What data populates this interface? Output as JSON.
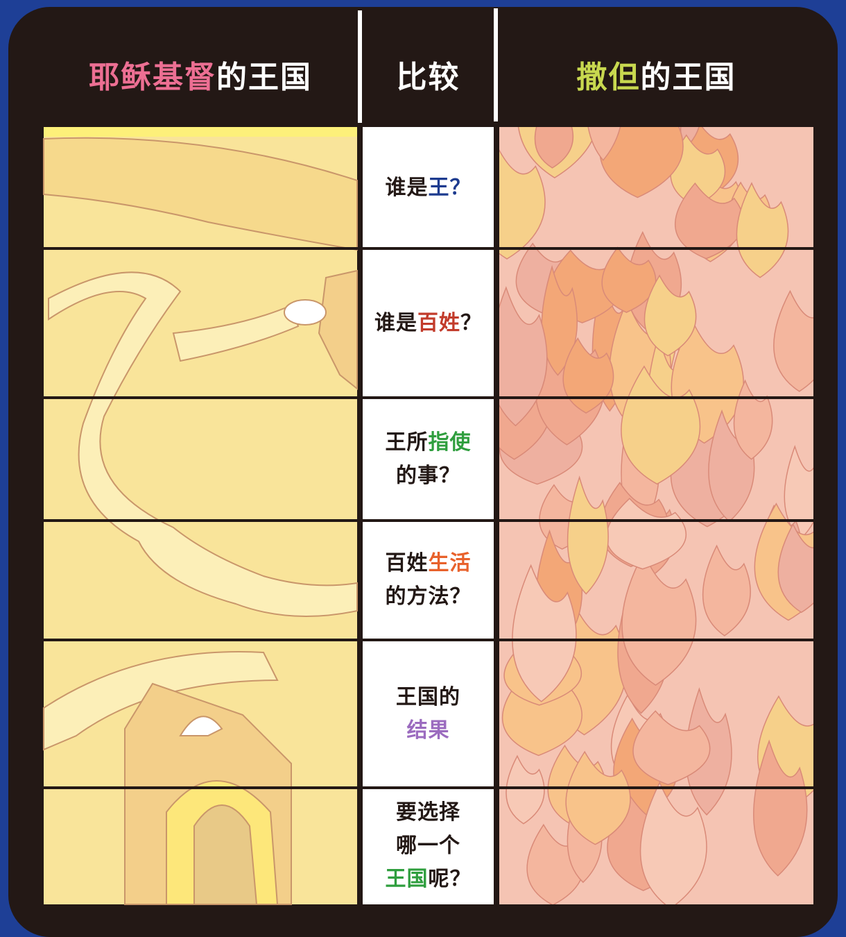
{
  "header": {
    "columns": [
      [
        {
          "text": "耶稣基督",
          "color": "#ec6f93"
        },
        {
          "text": "的王国",
          "color": "#ffffff"
        }
      ],
      [
        {
          "text": "比较",
          "color": "#ffffff"
        }
      ],
      [
        {
          "text": "撒但",
          "color": "#c8d84f"
        },
        {
          "text": "的王国",
          "color": "#ffffff"
        }
      ]
    ]
  },
  "rows": [
    {
      "lines": [
        [
          {
            "text": "谁是",
            "color": "#231815"
          },
          {
            "text": "王",
            "color": "#1d3b8f"
          },
          {
            "text": "？",
            "color": "#1d3b8f"
          }
        ]
      ]
    },
    {
      "lines": [
        [
          {
            "text": "谁是",
            "color": "#231815"
          },
          {
            "text": "百姓",
            "color": "#c23b2b"
          },
          {
            "text": "？",
            "color": "#231815"
          }
        ]
      ]
    },
    {
      "lines": [
        [
          {
            "text": "王所",
            "color": "#231815"
          },
          {
            "text": "指使",
            "color": "#2f9e3e"
          }
        ],
        [
          {
            "text": "的事？",
            "color": "#231815"
          }
        ]
      ]
    },
    {
      "lines": [
        [
          {
            "text": "百姓",
            "color": "#231815"
          },
          {
            "text": "生活",
            "color": "#e8612b"
          }
        ],
        [
          {
            "text": "的方法？",
            "color": "#231815"
          }
        ]
      ]
    },
    {
      "lines": [
        [
          {
            "text": "王国的",
            "color": "#231815"
          }
        ],
        [
          {
            "text": "结果",
            "color": "#9b6bbf"
          }
        ]
      ]
    },
    {
      "lines": [
        [
          {
            "text": "要选择",
            "color": "#231815"
          }
        ],
        [
          {
            "text": "哪一个",
            "color": "#231815"
          }
        ],
        [
          {
            "text": "王国",
            "color": "#2f9e3e"
          },
          {
            "text": "呢？",
            "color": "#231815"
          }
        ]
      ]
    }
  ]
}
